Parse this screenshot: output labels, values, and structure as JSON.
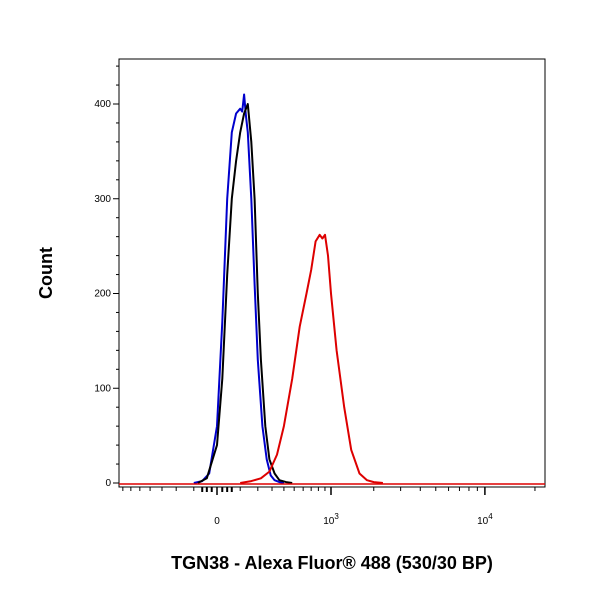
{
  "chart_data": {
    "type": "line",
    "title": "",
    "xlabel": "TGN38 - Alexa Fluor® 488 (530/30 BP)",
    "ylabel": "Count",
    "x_scale": "biexponential",
    "x_tick_labels": [
      {
        "value": 0,
        "label": "0",
        "exp": ""
      },
      {
        "value": 1000,
        "label": "10",
        "exp": "3"
      },
      {
        "value": 10000,
        "label": "10",
        "exp": "4"
      }
    ],
    "y_ticks": [
      0,
      100,
      200,
      300,
      400
    ],
    "ylim": [
      0,
      450
    ],
    "grid": false,
    "legend": "none",
    "series": [
      {
        "color": "#0000cc",
        "x": [
          -100,
          -60,
          -30,
          0,
          20,
          40,
          60,
          80,
          100,
          110,
          120,
          130,
          140,
          160,
          180,
          200,
          230,
          260,
          290,
          320,
          360,
          400
        ],
        "y": [
          0,
          2,
          10,
          60,
          170,
          300,
          370,
          390,
          395,
          392,
          410,
          388,
          370,
          300,
          210,
          130,
          60,
          25,
          8,
          3,
          1,
          0
        ]
      },
      {
        "color": "#000000",
        "x": [
          -80,
          -40,
          0,
          20,
          40,
          60,
          80,
          100,
          120,
          140,
          160,
          180,
          200,
          220,
          250,
          280,
          320,
          360,
          420,
          480
        ],
        "y": [
          0,
          5,
          40,
          110,
          220,
          300,
          340,
          370,
          390,
          400,
          360,
          300,
          200,
          130,
          60,
          25,
          10,
          3,
          1,
          0
        ]
      },
      {
        "color": "#dd0000",
        "x": [
          100,
          160,
          220,
          280,
          340,
          400,
          480,
          560,
          640,
          700,
          760,
          820,
          860,
          900,
          950,
          1000,
          1100,
          1250,
          1400,
          1600,
          1800,
          2000,
          2300
        ],
        "y": [
          0,
          2,
          5,
          12,
          30,
          60,
          110,
          165,
          200,
          225,
          255,
          262,
          258,
          262,
          240,
          200,
          140,
          80,
          35,
          10,
          3,
          1,
          0
        ]
      }
    ]
  }
}
